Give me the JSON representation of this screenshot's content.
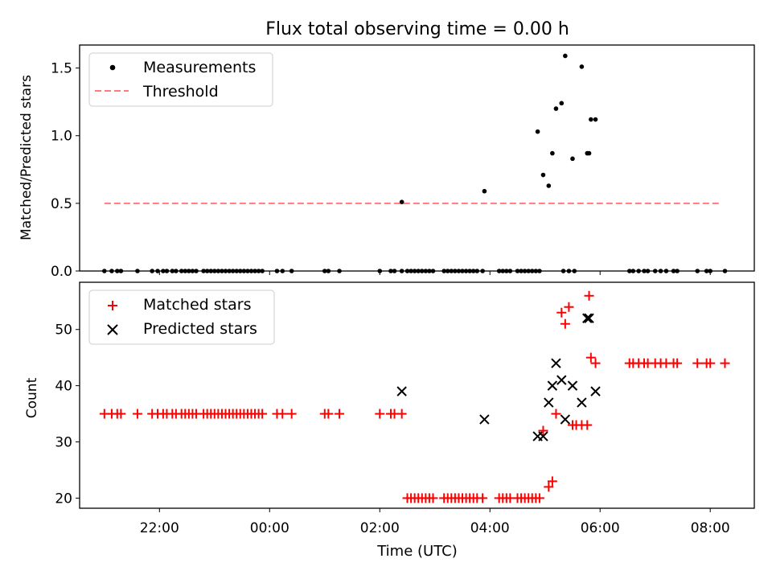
{
  "figure": {
    "title": "Flux total observing time = 0.00 h",
    "xlabel": "Time (UTC)"
  },
  "chart_data": [
    {
      "type": "scatter",
      "ylabel": "Matched/Predicted stars",
      "ylim": [
        0,
        1.67
      ],
      "yticks": [
        0.0,
        0.5,
        1.0,
        1.5
      ],
      "ytick_labels": [
        "0.0",
        "0.5",
        "1.0",
        "1.5"
      ],
      "legend_position": "top-left",
      "series": [
        {
          "name": "Measurements",
          "marker": "dot",
          "color": "#000000",
          "x": [
            "21:00",
            "21:08",
            "21:14",
            "21:18",
            "21:36",
            "21:52",
            "21:58",
            "22:04",
            "22:08",
            "22:14",
            "22:18",
            "22:24",
            "22:28",
            "22:32",
            "22:36",
            "22:40",
            "22:48",
            "22:52",
            "22:56",
            "23:00",
            "23:04",
            "23:08",
            "23:12",
            "23:16",
            "23:20",
            "23:24",
            "23:28",
            "23:32",
            "23:36",
            "23:40",
            "23:44",
            "23:48",
            "23:52",
            "00:08",
            "00:14",
            "00:24",
            "01:00",
            "01:04",
            "01:16",
            "02:00",
            "02:12",
            "02:16",
            "02:24",
            "02:30",
            "02:34",
            "02:38",
            "02:42",
            "02:46",
            "02:50",
            "02:54",
            "02:58",
            "03:10",
            "03:14",
            "03:18",
            "03:22",
            "03:26",
            "03:30",
            "03:34",
            "03:38",
            "03:42",
            "03:46",
            "03:52",
            "04:10",
            "04:14",
            "04:18",
            "04:22",
            "04:30",
            "04:34",
            "04:38",
            "04:42",
            "04:46",
            "04:50",
            "04:54",
            "05:20",
            "05:26",
            "05:32",
            "06:32",
            "06:36",
            "06:42",
            "06:48",
            "06:52",
            "07:00",
            "07:06",
            "07:12",
            "07:20",
            "07:24",
            "07:46",
            "07:56",
            "08:00",
            "08:16",
            "02:24",
            "03:54",
            "04:52",
            "04:58",
            "05:04",
            "05:08",
            "05:12",
            "05:18",
            "05:22",
            "05:30",
            "05:40",
            "05:46",
            "05:48",
            "05:50",
            "05:55"
          ],
          "y": [
            0,
            0,
            0,
            0,
            0,
            0,
            0,
            0,
            0,
            0,
            0,
            0,
            0,
            0,
            0,
            0,
            0,
            0,
            0,
            0,
            0,
            0,
            0,
            0,
            0,
            0,
            0,
            0,
            0,
            0,
            0,
            0,
            0,
            0,
            0,
            0,
            0,
            0,
            0,
            0,
            0,
            0,
            0,
            0,
            0,
            0,
            0,
            0,
            0,
            0,
            0,
            0,
            0,
            0,
            0,
            0,
            0,
            0,
            0,
            0,
            0,
            0,
            0,
            0,
            0,
            0,
            0,
            0,
            0,
            0,
            0,
            0,
            0,
            0,
            0,
            0,
            0,
            0,
            0,
            0,
            0,
            0,
            0,
            0,
            0,
            0,
            0,
            0,
            0,
            0,
            0.51,
            0.59,
            1.03,
            0.71,
            0.63,
            0.87,
            1.2,
            1.24,
            1.59,
            0.83,
            1.51,
            0.87,
            0.87,
            1.12,
            1.12
          ]
        },
        {
          "name": "Threshold",
          "style": "dashed",
          "color": "#ff7b7b",
          "x": [
            "21:00",
            "08:12"
          ],
          "y": [
            0.5,
            0.5
          ]
        }
      ]
    },
    {
      "type": "scatter",
      "ylabel": "Count",
      "ylim": [
        18.2,
        58.4
      ],
      "yticks": [
        20,
        30,
        40,
        50
      ],
      "ytick_labels": [
        "20",
        "30",
        "40",
        "50"
      ],
      "xticks": [
        "22:00",
        "00:00",
        "02:00",
        "04:00",
        "06:00",
        "08:00"
      ],
      "legend_position": "top-left",
      "series": [
        {
          "name": "Matched stars",
          "marker": "plus",
          "color": "#ff0000",
          "x": [
            "21:00",
            "21:08",
            "21:14",
            "21:18",
            "21:36",
            "21:52",
            "21:58",
            "22:04",
            "22:08",
            "22:14",
            "22:18",
            "22:24",
            "22:28",
            "22:32",
            "22:36",
            "22:40",
            "22:48",
            "22:52",
            "22:56",
            "23:00",
            "23:04",
            "23:08",
            "23:12",
            "23:16",
            "23:20",
            "23:24",
            "23:28",
            "23:32",
            "23:36",
            "23:40",
            "23:44",
            "23:48",
            "23:52",
            "00:08",
            "00:14",
            "00:24",
            "01:00",
            "01:04",
            "01:16",
            "02:00",
            "02:12",
            "02:16",
            "02:24",
            "02:30",
            "02:34",
            "02:38",
            "02:42",
            "02:46",
            "02:50",
            "02:54",
            "02:58",
            "03:10",
            "03:14",
            "03:18",
            "03:22",
            "03:26",
            "03:30",
            "03:34",
            "03:38",
            "03:42",
            "03:46",
            "03:52",
            "04:10",
            "04:14",
            "04:18",
            "04:22",
            "04:30",
            "04:34",
            "04:38",
            "04:42",
            "04:46",
            "04:50",
            "04:54",
            "04:58",
            "05:04",
            "05:08",
            "05:12",
            "05:18",
            "05:22",
            "05:26",
            "05:30",
            "05:34",
            "05:40",
            "05:46",
            "05:48",
            "05:50",
            "05:55",
            "06:32",
            "06:36",
            "06:42",
            "06:48",
            "06:52",
            "07:00",
            "07:06",
            "07:12",
            "07:20",
            "07:24",
            "07:46",
            "07:56",
            "08:00",
            "08:16"
          ],
          "y": [
            35,
            35,
            35,
            35,
            35,
            35,
            35,
            35,
            35,
            35,
            35,
            35,
            35,
            35,
            35,
            35,
            35,
            35,
            35,
            35,
            35,
            35,
            35,
            35,
            35,
            35,
            35,
            35,
            35,
            35,
            35,
            35,
            35,
            35,
            35,
            35,
            35,
            35,
            35,
            35,
            35,
            35,
            35,
            20,
            20,
            20,
            20,
            20,
            20,
            20,
            20,
            20,
            20,
            20,
            20,
            20,
            20,
            20,
            20,
            20,
            20,
            20,
            20,
            20,
            20,
            20,
            20,
            20,
            20,
            20,
            20,
            20,
            20,
            32,
            22,
            23,
            35,
            53,
            51,
            54,
            33,
            33,
            33,
            33,
            56,
            45,
            44,
            44,
            44,
            44,
            44,
            44,
            44,
            44,
            44,
            44,
            44,
            44,
            44,
            44,
            44
          ]
        },
        {
          "name": "Predicted stars",
          "marker": "x",
          "color": "#000000",
          "x": [
            "02:24",
            "03:54",
            "04:52",
            "04:58",
            "05:04",
            "05:08",
            "05:12",
            "05:18",
            "05:22",
            "05:30",
            "05:40",
            "05:46",
            "05:48",
            "05:55"
          ],
          "y": [
            39,
            34,
            31,
            31,
            37,
            40,
            44,
            41,
            34,
            40,
            37,
            52,
            52,
            39
          ]
        }
      ]
    }
  ]
}
